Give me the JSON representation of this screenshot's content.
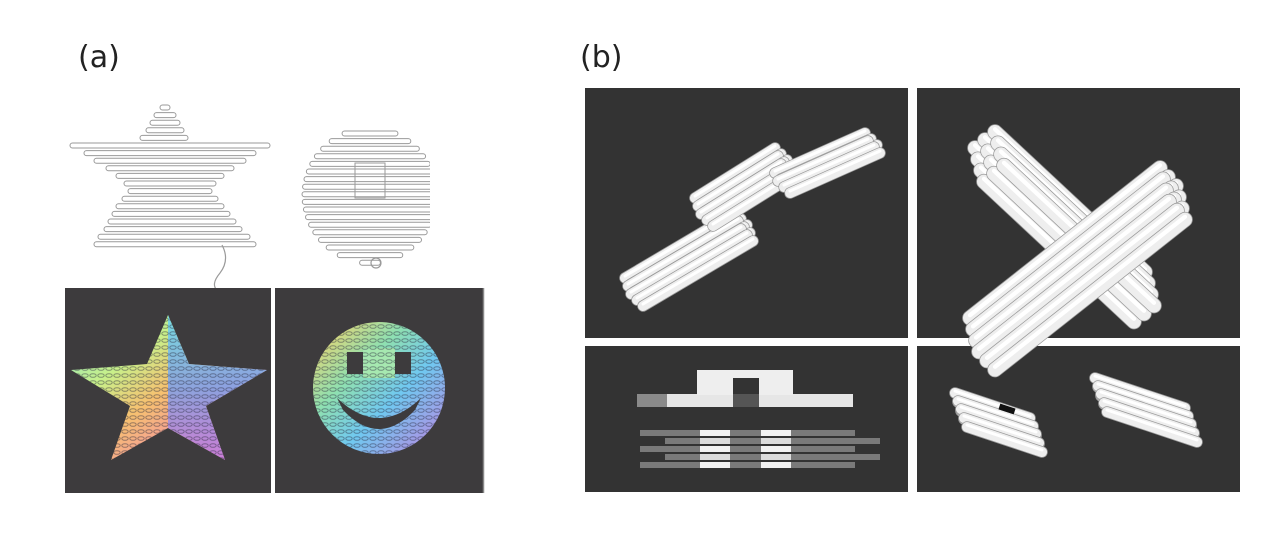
{
  "figure": {
    "panel_a_label": "(a)",
    "panel_b_label": "(b)"
  },
  "colors": {
    "background": "#ffffff",
    "dark_panel": "#333333",
    "dark_panel_a": "#3d3b3d",
    "outline": "#9a9a9a",
    "helix_light": "#f4f4f4",
    "helix_shade": "#bdbdbd"
  },
  "subfigures": [
    {
      "name": "star-outline",
      "panel": "a"
    },
    {
      "name": "smiley-outline",
      "panel": "a"
    },
    {
      "name": "star-colored",
      "panel": "a"
    },
    {
      "name": "smiley-colored",
      "panel": "a"
    },
    {
      "name": "parallel-bundles-3d",
      "panel": "b"
    },
    {
      "name": "crossed-bundles-3d",
      "panel": "b"
    },
    {
      "name": "layer-schematic",
      "panel": "b"
    },
    {
      "name": "two-bundles-3d",
      "panel": "b"
    }
  ]
}
